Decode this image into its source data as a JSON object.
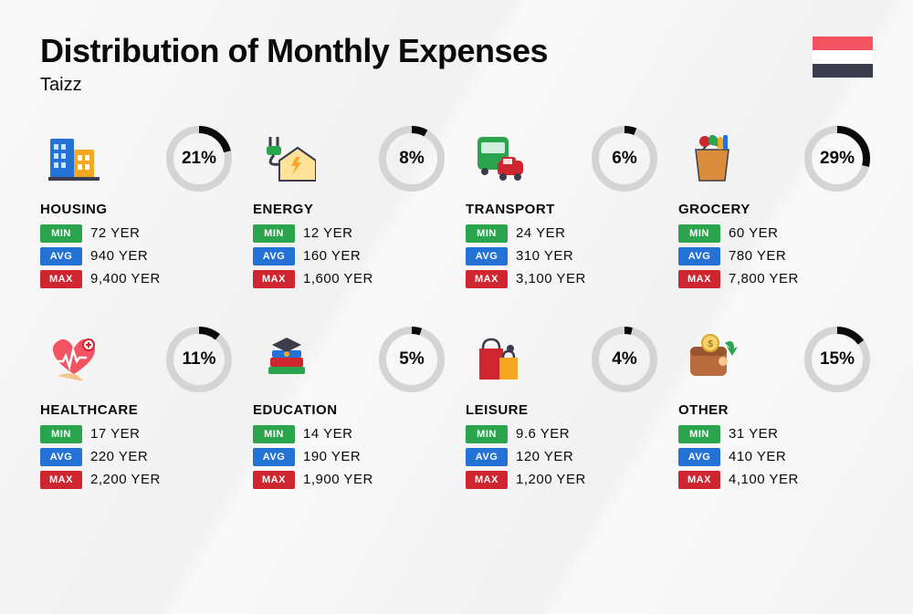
{
  "title": "Distribution of Monthly Expenses",
  "subtitle": "Taizz",
  "currency": "YER",
  "flag_colors": [
    "#f45362",
    "#ffffff",
    "#3c3d4c"
  ],
  "donut": {
    "track_color": "#d4d4d4",
    "arc_color": "#0a0a0a",
    "stroke_width": 8,
    "radius": 32
  },
  "badges": {
    "min": {
      "label": "MIN",
      "color": "#2aa54d"
    },
    "avg": {
      "label": "AVG",
      "color": "#2472d5"
    },
    "max": {
      "label": "MAX",
      "color": "#cf252f"
    }
  },
  "categories": [
    {
      "name": "HOUSING",
      "pct": 21,
      "min": "72",
      "avg": "940",
      "max": "9,400",
      "icon": "housing"
    },
    {
      "name": "ENERGY",
      "pct": 8,
      "min": "12",
      "avg": "160",
      "max": "1,600",
      "icon": "energy"
    },
    {
      "name": "TRANSPORT",
      "pct": 6,
      "min": "24",
      "avg": "310",
      "max": "3,100",
      "icon": "transport"
    },
    {
      "name": "GROCERY",
      "pct": 29,
      "min": "60",
      "avg": "780",
      "max": "7,800",
      "icon": "grocery"
    },
    {
      "name": "HEALTHCARE",
      "pct": 11,
      "min": "17",
      "avg": "220",
      "max": "2,200",
      "icon": "healthcare"
    },
    {
      "name": "EDUCATION",
      "pct": 5,
      "min": "14",
      "avg": "190",
      "max": "1,900",
      "icon": "education"
    },
    {
      "name": "LEISURE",
      "pct": 4,
      "min": "9.6",
      "avg": "120",
      "max": "1,200",
      "icon": "leisure"
    },
    {
      "name": "OTHER",
      "pct": 15,
      "min": "31",
      "avg": "410",
      "max": "4,100",
      "icon": "other"
    }
  ]
}
